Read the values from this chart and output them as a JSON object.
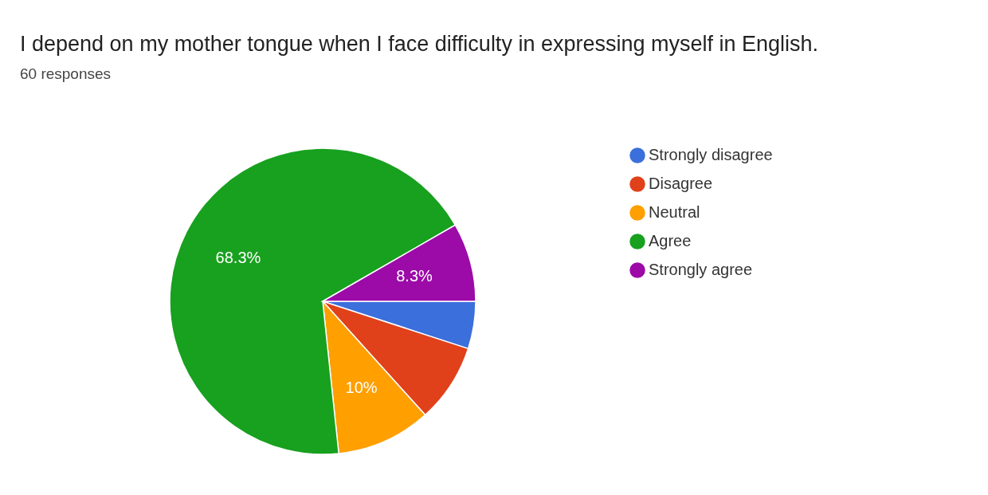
{
  "chart_data": {
    "type": "pie",
    "title": "I depend on my mother tongue when I face difficulty in expressing myself in English.",
    "subtitle": "60 responses",
    "categories": [
      "Strongly disagree",
      "Disagree",
      "Neutral",
      "Agree",
      "Strongly agree"
    ],
    "values": [
      5,
      8.3,
      10,
      68.3,
      8.3
    ],
    "colors": [
      "#3b6fdc",
      "#e0411a",
      "#ff9f00",
      "#18a01f",
      "#9c0aa8"
    ],
    "value_labels": [
      null,
      null,
      "10%",
      "68.3%",
      "8.3%"
    ],
    "legend": "right"
  }
}
